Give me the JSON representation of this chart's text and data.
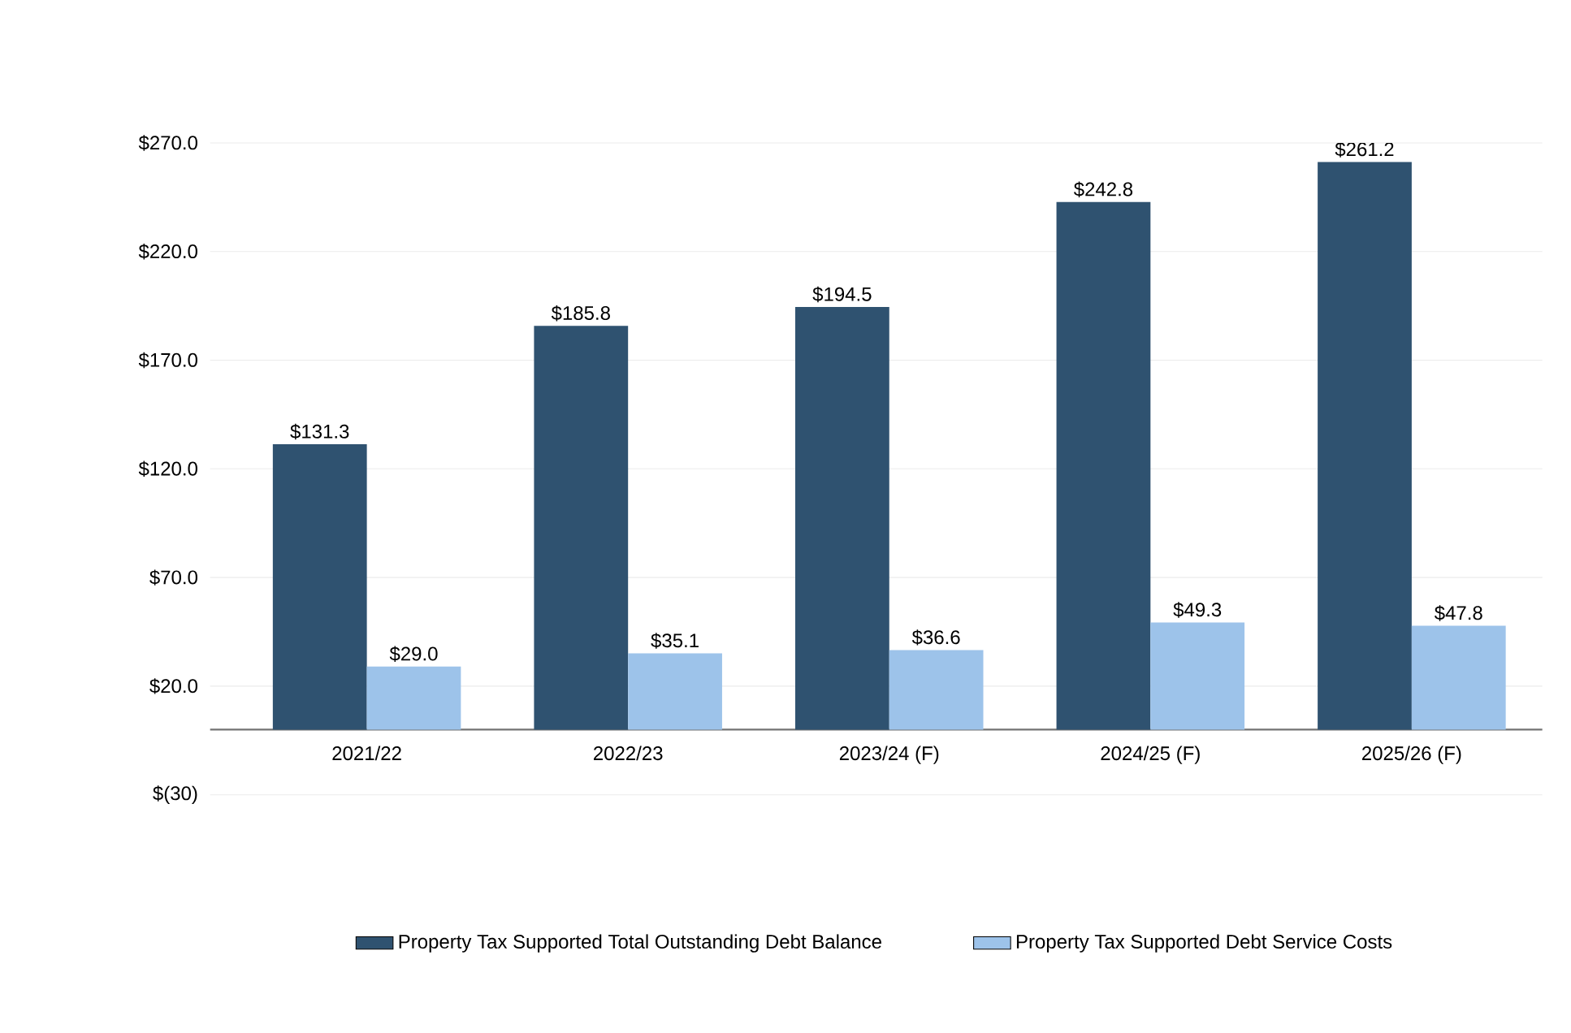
{
  "chart_data": {
    "type": "bar",
    "categories": [
      "2021/22",
      "2022/23",
      "2023/24 (F)",
      "2024/25 (F)",
      "2025/26 (F)"
    ],
    "series": [
      {
        "name": "Property Tax Supported Total Outstanding Debt Balance",
        "color": "#2f5270",
        "values": [
          131.3,
          185.8,
          194.5,
          242.8,
          261.2
        ],
        "value_labels": [
          "$131.3",
          "$185.8",
          "$194.5",
          "$242.8",
          "$261.2"
        ]
      },
      {
        "name": "Property Tax Supported Debt Service Costs",
        "color": "#9dc3ea",
        "values": [
          29.0,
          35.1,
          36.6,
          49.3,
          47.8
        ],
        "value_labels": [
          "$29.0",
          "$35.1",
          "$36.6",
          "$49.3",
          "$47.8"
        ]
      }
    ],
    "ylim": [
      -30,
      270
    ],
    "yticks": [
      {
        "value": -30,
        "label": "$(30)"
      },
      {
        "value": 20,
        "label": "$20.0"
      },
      {
        "value": 70,
        "label": "$70.0"
      },
      {
        "value": 120,
        "label": "$120.0"
      },
      {
        "value": 170,
        "label": "$170.0"
      },
      {
        "value": 220,
        "label": "$220.0"
      },
      {
        "value": 270,
        "label": "$270.0"
      }
    ],
    "grid": "y",
    "legend": "bottom"
  }
}
